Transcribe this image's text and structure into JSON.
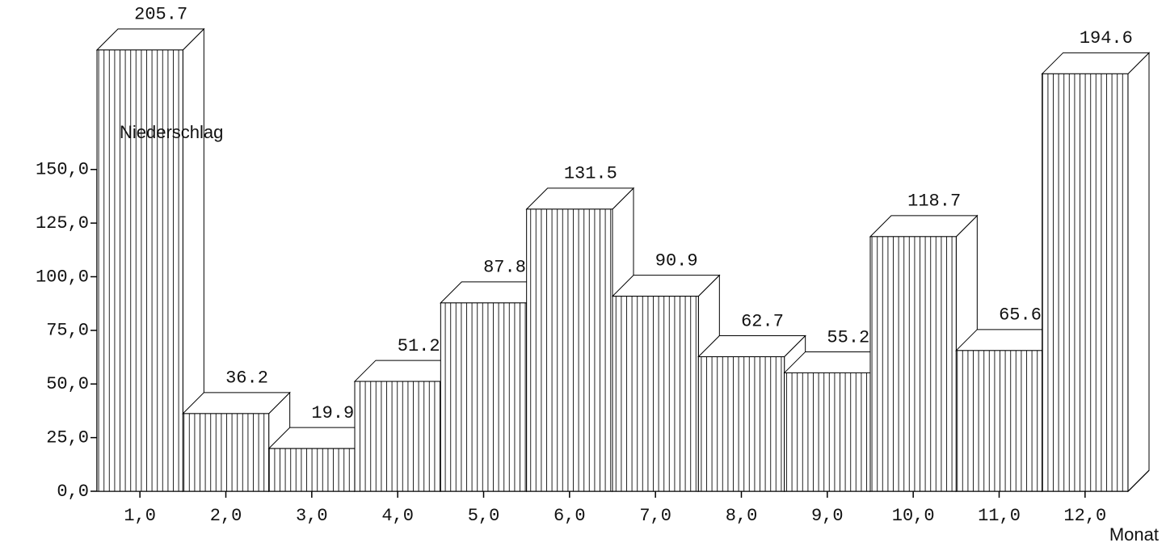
{
  "chart_data": {
    "type": "bar3d",
    "x_label": "Monat",
    "y_label": "Niederschlag",
    "categories": [
      "1,0",
      "2,0",
      "3,0",
      "4,0",
      "5,0",
      "6,0",
      "7,0",
      "8,0",
      "9,0",
      "10,0",
      "11,0",
      "12,0"
    ],
    "values": [
      205.7,
      36.2,
      19.9,
      51.2,
      87.8,
      131.5,
      90.9,
      62.7,
      55.2,
      118.7,
      65.6,
      194.6
    ],
    "color": "#ffffff",
    "ylim": [
      0,
      229
    ],
    "yticks": [
      {
        "value": 0,
        "label": "0,0"
      },
      {
        "value": 25,
        "label": "25,0"
      },
      {
        "value": 50,
        "label": "50,0"
      },
      {
        "value": 75,
        "label": "75,0"
      },
      {
        "value": 100,
        "label": "100,0"
      },
      {
        "value": 125,
        "label": "125,0"
      },
      {
        "value": 150,
        "label": "150,0"
      }
    ],
    "grid": false
  }
}
